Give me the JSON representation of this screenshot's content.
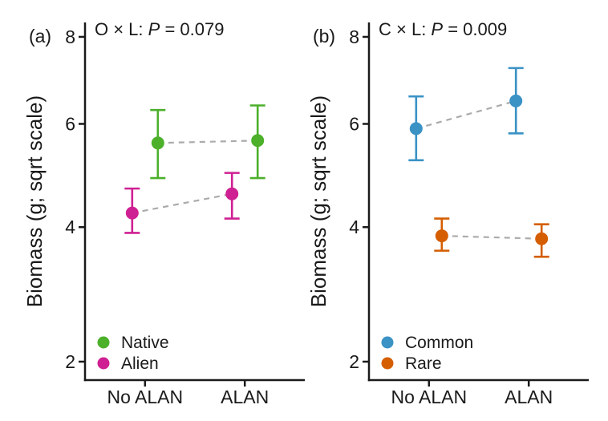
{
  "figure": {
    "background": "#ffffff",
    "text_color": "#1a1a1a",
    "axis_color": "#1a1a1a"
  },
  "chart_data": [
    {
      "type": "scatter",
      "subtype": "point-with-errorbars-interaction-plot",
      "panel_label": "(a)",
      "annotation": {
        "prefix": "O × L: ",
        "italic": "P",
        "suffix": " = 0.079"
      },
      "ylabel": "Biomass (g; sqrt scale)",
      "xlabel": "",
      "yscale": "sqrt",
      "ylim": [
        1.78,
        8.36
      ],
      "yticks": [
        2,
        4,
        6,
        8
      ],
      "grid": false,
      "categories": [
        "No ALAN",
        "ALAN"
      ],
      "series": [
        {
          "name": "Alien",
          "color": "#CF2093",
          "dodge": -1,
          "values": [
            4.25,
            4.6
          ],
          "err_low": [
            3.9,
            4.15
          ],
          "err_high": [
            4.7,
            5.0
          ]
        },
        {
          "name": "Native",
          "color": "#4CB02B",
          "dodge": 1,
          "values": [
            5.6,
            5.65
          ],
          "err_low": [
            4.9,
            4.9
          ],
          "err_high": [
            6.3,
            6.4
          ]
        }
      ],
      "legend": [
        {
          "label": "Native",
          "color": "#4CB02B"
        },
        {
          "label": "Alien",
          "color": "#CF2093"
        }
      ],
      "legend_position": "inside-bottom-left",
      "connector": {
        "style": "dashed",
        "color": "#ABABAB"
      }
    },
    {
      "type": "scatter",
      "subtype": "point-with-errorbars-interaction-plot",
      "panel_label": "(b)",
      "annotation": {
        "prefix": "C × L: ",
        "italic": "P",
        "suffix": " = 0.009"
      },
      "ylabel": "Biomass (g; sqrt scale)",
      "xlabel": "",
      "yscale": "sqrt",
      "ylim": [
        1.78,
        8.36
      ],
      "yticks": [
        2,
        4,
        6,
        8
      ],
      "grid": false,
      "categories": [
        "No ALAN",
        "ALAN"
      ],
      "series": [
        {
          "name": "Common",
          "color": "#3A92C5",
          "dodge": -1,
          "values": [
            5.9,
            6.5
          ],
          "err_low": [
            5.25,
            5.8
          ],
          "err_high": [
            6.6,
            7.25
          ]
        },
        {
          "name": "Rare",
          "color": "#D55E00",
          "dodge": 1,
          "values": [
            3.85,
            3.8
          ],
          "err_low": [
            3.6,
            3.5
          ],
          "err_high": [
            4.15,
            4.05
          ]
        }
      ],
      "legend": [
        {
          "label": "Common",
          "color": "#3A92C5"
        },
        {
          "label": "Rare",
          "color": "#D55E00"
        }
      ],
      "legend_position": "inside-bottom-left",
      "connector": {
        "style": "dashed",
        "color": "#ABABAB"
      }
    }
  ]
}
